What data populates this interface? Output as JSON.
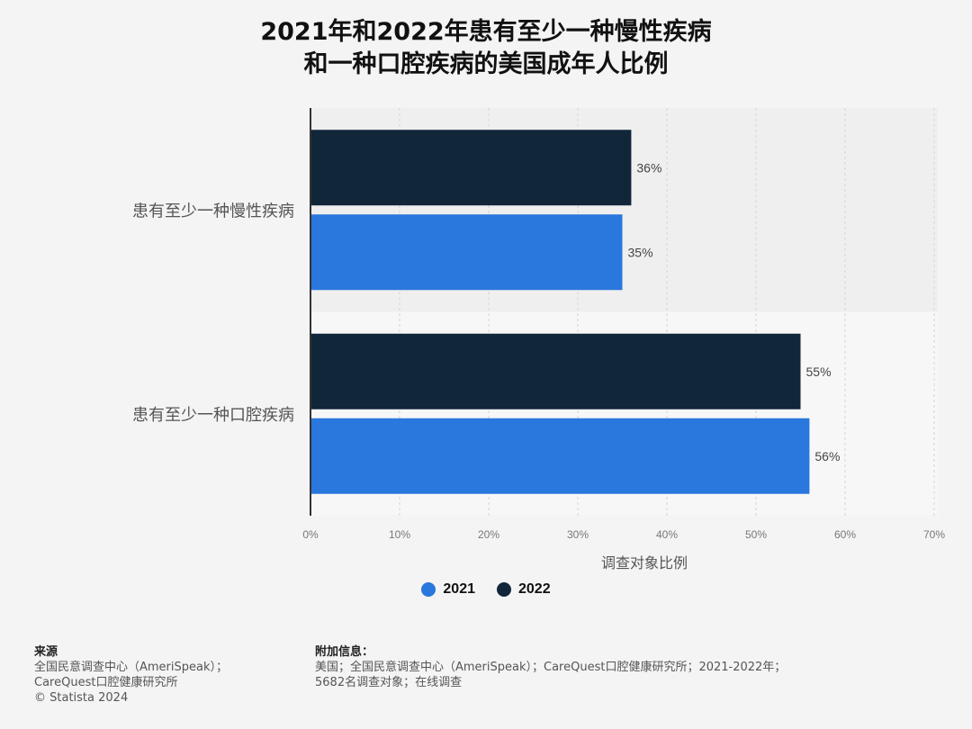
{
  "title_lines": [
    "2021年和2022年患有至少一种慢性疾病",
    "和一种口腔疾病的美国成年人比例"
  ],
  "chart_data": {
    "type": "bar",
    "orientation": "horizontal",
    "title": "2021年和2022年患有至少一种慢性疾病和一种口腔疾病的美国成年人比例",
    "categories": [
      "患有至少一种慢性疾病",
      "患有至少一种口腔疾病"
    ],
    "series": [
      {
        "name": "2022",
        "color": "#12263a",
        "values": [
          36,
          55
        ],
        "labels": [
          "36%",
          "55%"
        ]
      },
      {
        "name": "2021",
        "color": "#2a77dd",
        "values": [
          35,
          56
        ],
        "labels": [
          "35%",
          "56%"
        ]
      }
    ],
    "xlabel": "调查对象比例",
    "xlim": [
      0,
      70
    ],
    "xticks": [
      "0%",
      "10%",
      "20%",
      "30%",
      "40%",
      "50%",
      "60%",
      "70%"
    ],
    "grid": true,
    "legend_position": "bottom"
  },
  "legend": [
    {
      "label": "2021",
      "color": "#2a77dd"
    },
    {
      "label": "2022",
      "color": "#12263a"
    }
  ],
  "footer": {
    "source_heading": "来源",
    "source_lines": [
      "全国民意调查中心（AmeriSpeak）；",
      "CareQuest口腔健康研究所",
      "© Statista 2024"
    ],
    "info_heading": "附加信息：",
    "info_lines": [
      "美国；全国民意调查中心（AmeriSpeak）；CareQuest口腔健康研究所；2021-2022年；",
      "5682名调查对象；在线调查"
    ]
  }
}
